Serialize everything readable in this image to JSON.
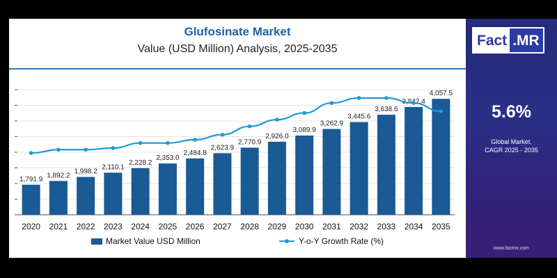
{
  "header": {
    "title": "Glufosinate Market",
    "subtitle": "Value (USD Million) Analysis, 2025-2035"
  },
  "sidebar": {
    "logo_left": "Fact",
    "logo_right": ".MR",
    "cagr_value": "5.6%",
    "cagr_label_line1": "Global Market,",
    "cagr_label_line2": "CAGR 2025 - 2035",
    "website": "www.factmr.com"
  },
  "legend": {
    "bar_label": "Market Value USD Million",
    "line_label": "Y-o-Y Growth Rate (%)"
  },
  "colors": {
    "bar": "#1a5a95",
    "line": "#1c9ad6",
    "title": "#1a63a8",
    "sidebar": "#2a2f86"
  },
  "chart_data": {
    "type": "bar",
    "categories": [
      "2020",
      "2021",
      "2022",
      "2023",
      "2024",
      "2025",
      "2026",
      "2027",
      "2028",
      "2029",
      "2030",
      "2031",
      "2032",
      "2033",
      "2034",
      "2035"
    ],
    "series": [
      {
        "name": "Market Value USD Million",
        "type": "bar",
        "values": [
          1791.9,
          1892.2,
          1998.2,
          2110.1,
          2228.2,
          2353.0,
          2484.8,
          2623.9,
          2770.9,
          2926.0,
          3089.9,
          3262.9,
          3445.6,
          3638.6,
          3842.4,
          4057.5
        ],
        "labels": [
          "1,791.9",
          "1,892.2",
          "1,998.2",
          "2,110.1",
          "2,228.2",
          "2,353.0",
          "2,484.8",
          "2,623.9",
          "2,770.9",
          "2,926.0",
          "3,089.9",
          "3,262.9",
          "3,445.6",
          "3,638.6",
          "3,842.4",
          "4,057.5"
        ]
      },
      {
        "name": "Y-o-Y Growth Rate (%)",
        "type": "line",
        "values": [
          5.2,
          5.4,
          5.4,
          5.5,
          5.8,
          5.8,
          6.0,
          6.3,
          6.8,
          7.2,
          7.6,
          8.2,
          8.5,
          8.5,
          8.2,
          7.7
        ]
      }
    ],
    "ylim": [
      1000,
      4300
    ],
    "grid": true,
    "legend_position": "bottom"
  }
}
